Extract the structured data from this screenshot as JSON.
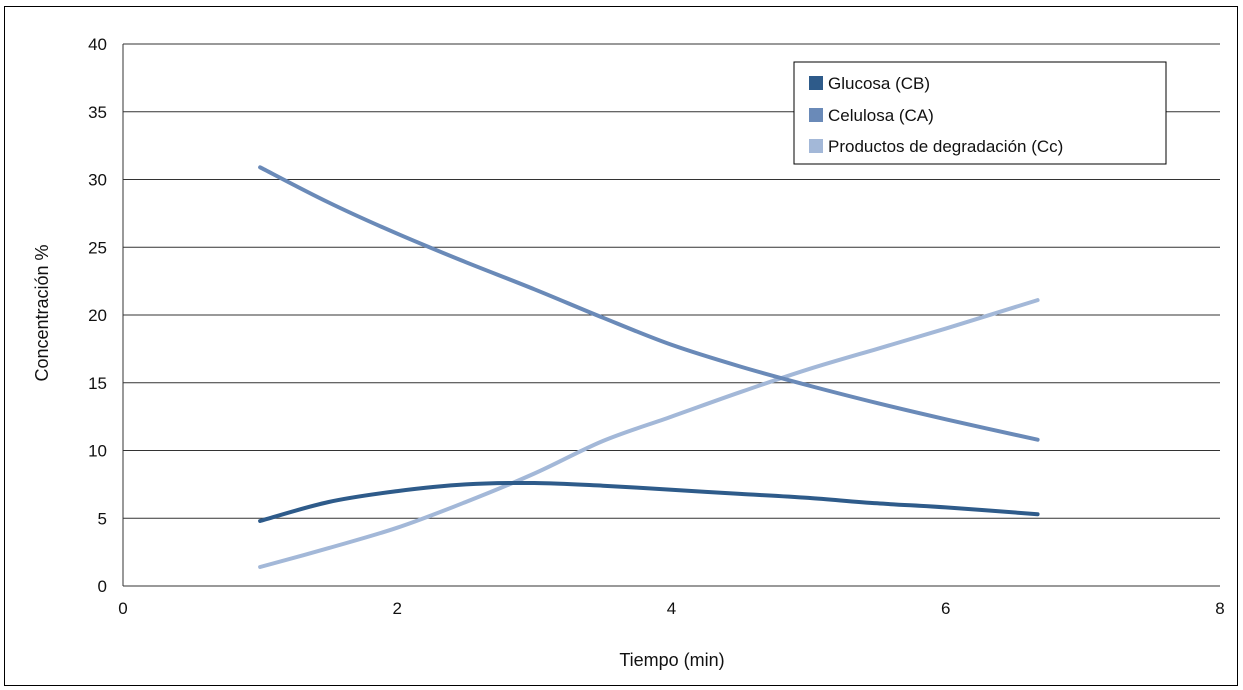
{
  "chart_data": {
    "type": "line",
    "xlabel": "Tiempo (min)",
    "ylabel": "Concentración %",
    "xlim": [
      0,
      8
    ],
    "ylim": [
      0,
      40
    ],
    "xticks": [
      0,
      2,
      4,
      6,
      8
    ],
    "yticks": [
      0,
      5,
      10,
      15,
      20,
      25,
      30,
      35,
      40
    ],
    "grid": "horizontal",
    "legend_position": "top-right",
    "series": [
      {
        "name": "Glucosa (CB)",
        "color": "#2e5b8a",
        "points": [
          [
            1.0,
            4.8
          ],
          [
            1.5,
            6.2
          ],
          [
            2.0,
            7.0
          ],
          [
            2.5,
            7.5
          ],
          [
            3.0,
            7.6
          ],
          [
            3.5,
            7.4
          ],
          [
            4.0,
            7.1
          ],
          [
            4.5,
            6.8
          ],
          [
            5.0,
            6.5
          ],
          [
            5.5,
            6.1
          ],
          [
            6.0,
            5.8
          ],
          [
            6.67,
            5.3
          ]
        ]
      },
      {
        "name": "Celulosa (CA)",
        "color": "#6a8ab8",
        "points": [
          [
            1.0,
            30.9
          ],
          [
            1.5,
            28.3
          ],
          [
            2.0,
            26.0
          ],
          [
            2.5,
            23.9
          ],
          [
            3.0,
            21.9
          ],
          [
            3.5,
            19.8
          ],
          [
            4.0,
            17.8
          ],
          [
            4.5,
            16.2
          ],
          [
            5.0,
            14.8
          ],
          [
            5.5,
            13.5
          ],
          [
            6.0,
            12.3
          ],
          [
            6.67,
            10.8
          ]
        ]
      },
      {
        "name": "Productos de degradación (Cc)",
        "color": "#a3b8d8",
        "points": [
          [
            1.0,
            1.4
          ],
          [
            1.5,
            2.8
          ],
          [
            2.0,
            4.3
          ],
          [
            2.5,
            6.2
          ],
          [
            3.0,
            8.3
          ],
          [
            3.5,
            10.7
          ],
          [
            4.0,
            12.5
          ],
          [
            4.5,
            14.3
          ],
          [
            5.0,
            16.0
          ],
          [
            5.5,
            17.5
          ],
          [
            6.0,
            19.0
          ],
          [
            6.67,
            21.1
          ]
        ]
      }
    ]
  }
}
